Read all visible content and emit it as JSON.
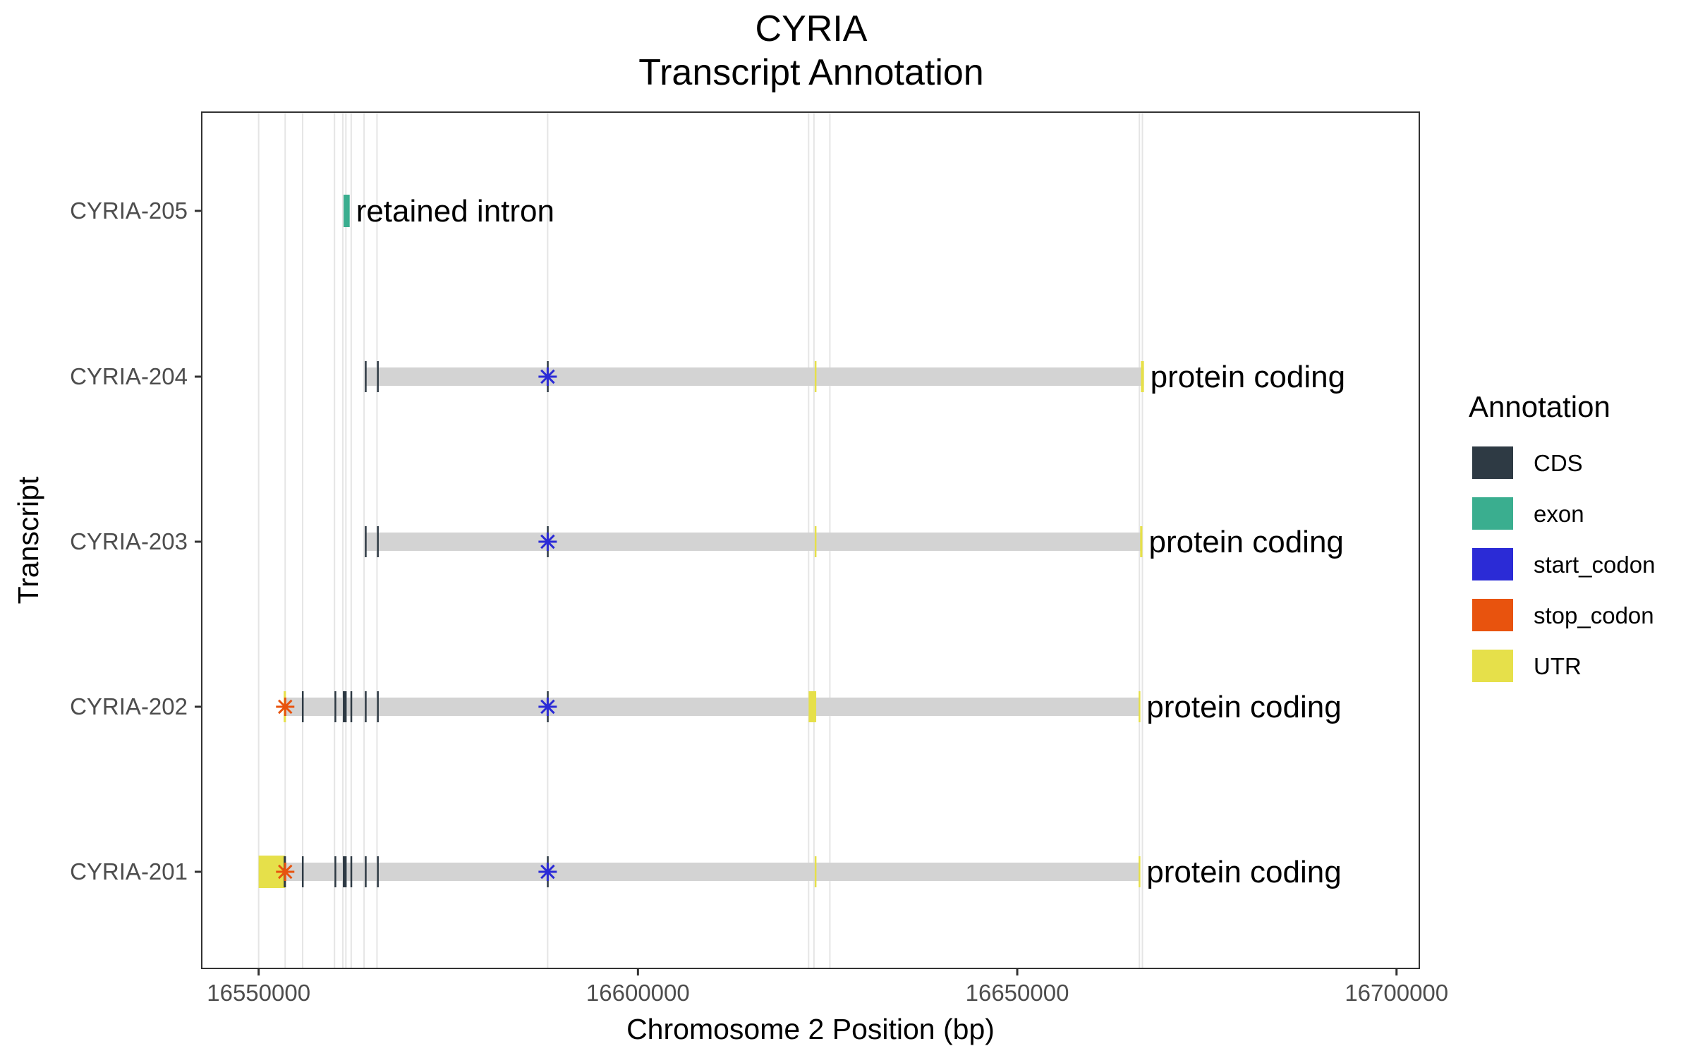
{
  "chart_data": {
    "type": "gene-track",
    "title": "CYRIA",
    "subtitle": "Transcript Annotation",
    "xlabel": "Chromosome 2 Position (bp)",
    "ylabel": "Transcript",
    "xlim": [
      16542500,
      16703000
    ],
    "x_ticks": [
      16550000,
      16600000,
      16650000,
      16700000
    ],
    "x_tick_labels": [
      "16550000",
      "16600000",
      "16650000",
      "16700000"
    ],
    "grid": "vertical lines at exon boundaries",
    "legend": {
      "title": "Annotation",
      "placement": "right",
      "entries": [
        {
          "label": "CDS",
          "color": "#2e3a44"
        },
        {
          "label": "exon",
          "color": "#3aae8f"
        },
        {
          "label": "start_codon",
          "color": "#2b2bd6"
        },
        {
          "label": "stop_codon",
          "color": "#e8530e"
        },
        {
          "label": "UTR",
          "color": "#e6e04a"
        }
      ]
    },
    "colors": {
      "CDS": "#2e3a44",
      "exon": "#3aae8f",
      "start_codon": "#2b2bd6",
      "stop_codon": "#e8530e",
      "UTR": "#e6e04a",
      "intron_bar": "#d3d3d3",
      "gridline": "#e5e5e5"
    },
    "gridlines": [
      16550000,
      16553500,
      16555800,
      16560000,
      16561100,
      16561500,
      16562200,
      16563900,
      16565600,
      16588100,
      16622500,
      16623200,
      16625300,
      16666100,
      16666500
    ],
    "transcripts": [
      {
        "name": "CYRIA-205",
        "biotype": "retained intron",
        "start": 16561200,
        "end": 16562000,
        "features": [
          {
            "type": "exon",
            "start": 16561200,
            "end": 16562000
          }
        ],
        "markers": []
      },
      {
        "name": "CYRIA-204",
        "biotype": "protein coding",
        "start": 16564000,
        "end": 16666700,
        "features": [
          {
            "type": "CDS",
            "start": 16564000,
            "end": 16564200
          },
          {
            "type": "CDS",
            "start": 16565600,
            "end": 16565800
          },
          {
            "type": "CDS",
            "start": 16588000,
            "end": 16588200
          },
          {
            "type": "UTR",
            "start": 16623300,
            "end": 16623500
          },
          {
            "type": "UTR",
            "start": 16666300,
            "end": 16666700
          }
        ],
        "markers": [
          {
            "type": "start_codon",
            "pos": 16588100
          }
        ]
      },
      {
        "name": "CYRIA-203",
        "biotype": "protein coding",
        "start": 16564000,
        "end": 16666500,
        "features": [
          {
            "type": "CDS",
            "start": 16564000,
            "end": 16564200
          },
          {
            "type": "CDS",
            "start": 16565600,
            "end": 16565800
          },
          {
            "type": "CDS",
            "start": 16588000,
            "end": 16588200
          },
          {
            "type": "UTR",
            "start": 16623300,
            "end": 16623500
          },
          {
            "type": "UTR",
            "start": 16666200,
            "end": 16666500
          }
        ],
        "markers": [
          {
            "type": "start_codon",
            "pos": 16588100
          }
        ]
      },
      {
        "name": "CYRIA-202",
        "biotype": "protein coding",
        "start": 16553300,
        "end": 16666200,
        "features": [
          {
            "type": "UTR",
            "start": 16553300,
            "end": 16553600
          },
          {
            "type": "CDS",
            "start": 16555700,
            "end": 16555900
          },
          {
            "type": "CDS",
            "start": 16560000,
            "end": 16560200
          },
          {
            "type": "CDS",
            "start": 16561100,
            "end": 16561600
          },
          {
            "type": "CDS",
            "start": 16562100,
            "end": 16562300
          },
          {
            "type": "CDS",
            "start": 16564000,
            "end": 16564200
          },
          {
            "type": "CDS",
            "start": 16565600,
            "end": 16565800
          },
          {
            "type": "CDS",
            "start": 16588000,
            "end": 16588200
          },
          {
            "type": "UTR",
            "start": 16622500,
            "end": 16623500
          },
          {
            "type": "UTR",
            "start": 16666000,
            "end": 16666200
          }
        ],
        "markers": [
          {
            "type": "stop_codon",
            "pos": 16553500
          },
          {
            "type": "start_codon",
            "pos": 16588100
          }
        ]
      },
      {
        "name": "CYRIA-201",
        "biotype": "protein coding",
        "start": 16550000,
        "end": 16666200,
        "features": [
          {
            "type": "UTR",
            "start": 16550000,
            "end": 16553500
          },
          {
            "type": "CDS",
            "start": 16553300,
            "end": 16553600
          },
          {
            "type": "CDS",
            "start": 16555700,
            "end": 16555900
          },
          {
            "type": "CDS",
            "start": 16560000,
            "end": 16560200
          },
          {
            "type": "CDS",
            "start": 16561100,
            "end": 16561600
          },
          {
            "type": "CDS",
            "start": 16562100,
            "end": 16562300
          },
          {
            "type": "CDS",
            "start": 16564000,
            "end": 16564200
          },
          {
            "type": "CDS",
            "start": 16565600,
            "end": 16565800
          },
          {
            "type": "CDS",
            "start": 16588000,
            "end": 16588200
          },
          {
            "type": "UTR",
            "start": 16623300,
            "end": 16623500
          },
          {
            "type": "UTR",
            "start": 16666000,
            "end": 16666200
          }
        ],
        "markers": [
          {
            "type": "stop_codon",
            "pos": 16553500
          },
          {
            "type": "start_codon",
            "pos": 16588100
          }
        ]
      }
    ]
  }
}
